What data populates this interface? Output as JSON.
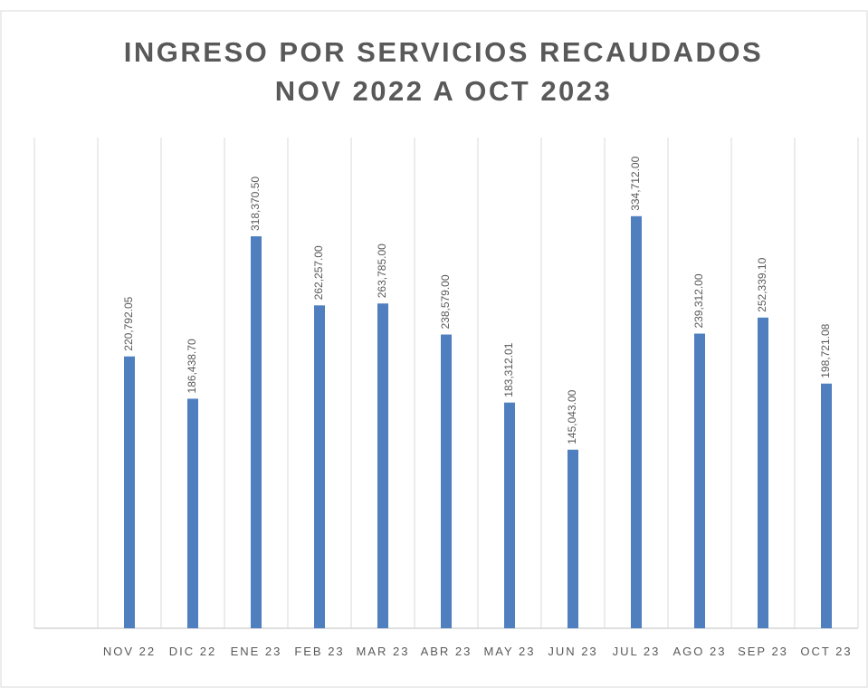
{
  "chart_data": {
    "type": "bar",
    "title": [
      "INGRESO POR SERVICIOS RECAUDADOS",
      "NOV 2022 A OCT 2023"
    ],
    "categories": [
      "NOV 22",
      "DIC 22",
      "ENE 23",
      "FEB 23",
      "MAR 23",
      "ABR 23",
      "MAY 23",
      "JUN 23",
      "JUL 23",
      "AGO 23",
      "SEP 23",
      "OCT 23"
    ],
    "values": [
      220792.05,
      186438.7,
      318370.5,
      262257.0,
      263785.0,
      238579.0,
      183312.01,
      145043.0,
      334712.0,
      239312.0,
      252339.1,
      198721.08
    ],
    "value_labels": [
      "220,792.05",
      "186,438.70",
      "318,370.50",
      "262,257.00",
      "263,785.00",
      "238,579.00",
      "183,312.01",
      "145,043.00",
      "334,712.00",
      "239,312.00",
      "252,339.10",
      "198,721.08"
    ],
    "color": "#4f7fbf",
    "ylim": [
      0,
      400000
    ]
  }
}
